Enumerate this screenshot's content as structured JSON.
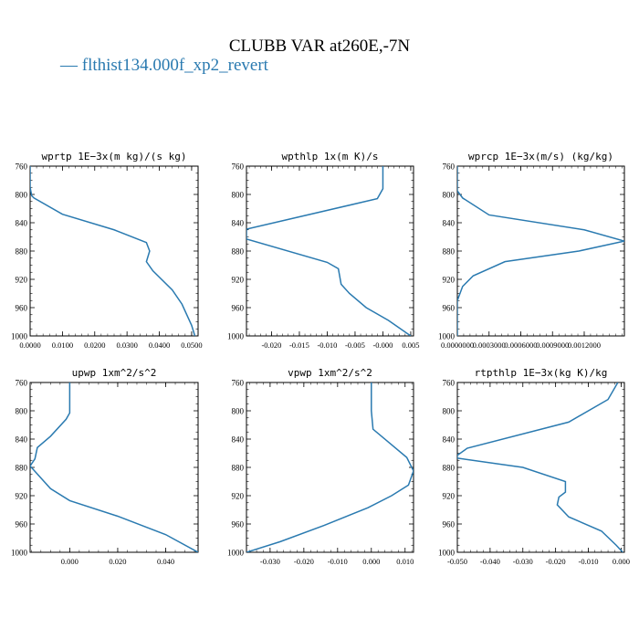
{
  "title": "CLUBB VAR at260E,-7N",
  "legend": {
    "label": "— flthist134.000f_xp2_revert",
    "color": "#2a7ab0"
  },
  "line_color": "#2a7ab0",
  "chart_data": [
    {
      "type": "line",
      "title": "wprtp   1E−3x(m kg)/(s kg)",
      "xlim": [
        0.0,
        0.052
      ],
      "ylim": [
        760,
        1000
      ],
      "y_inverted": true,
      "xticks": [
        0.0,
        0.01,
        0.02,
        0.03,
        0.04,
        0.05
      ],
      "xtick_labels": [
        "0.0000",
        "0.0100",
        "0.0200",
        "0.0300",
        "0.0400",
        "0.0500"
      ],
      "yticks": [
        760,
        800,
        840,
        880,
        920,
        960,
        1000
      ],
      "series": [
        {
          "x": [
            0.0,
            0.0,
            0.0005,
            0.0012,
            0.01,
            0.026,
            0.036,
            0.037,
            0.036,
            0.038,
            0.044,
            0.047,
            0.05,
            0.051
          ],
          "y": [
            760,
            790,
            802,
            805,
            828,
            850,
            868,
            880,
            895,
            908,
            935,
            955,
            985,
            1000
          ]
        }
      ]
    },
    {
      "type": "line",
      "title": "wpthlp   1x(m K)/s",
      "xlim": [
        -0.0245,
        0.0055
      ],
      "ylim": [
        760,
        1000
      ],
      "y_inverted": true,
      "xticks": [
        -0.02,
        -0.015,
        -0.01,
        -0.005,
        0.0,
        0.005
      ],
      "xtick_labels": [
        "-0.020",
        "-0.015",
        "-0.010",
        "-0.005",
        "-0.000",
        "0.005"
      ],
      "yticks": [
        760,
        800,
        840,
        880,
        920,
        960,
        1000
      ],
      "series": [
        {
          "x": [
            0.0,
            0.0,
            -0.001,
            -0.0245,
            -0.0245,
            -0.01,
            -0.008,
            -0.0075,
            -0.006,
            -0.003,
            0.001,
            0.005
          ],
          "y": [
            760,
            792,
            806,
            849,
            863,
            896,
            905,
            927,
            940,
            960,
            978,
            1000
          ]
        }
      ]
    },
    {
      "type": "line",
      "title": "wprcp   1E−3x(m/s) (kg/kg)",
      "xlim": [
        0.0,
        0.00158
      ],
      "ylim": [
        760,
        1000
      ],
      "y_inverted": true,
      "xticks": [
        0.0,
        0.0003,
        0.0006,
        0.0009,
        0.0012
      ],
      "xtick_labels": [
        "0.0000000",
        "0.0003000",
        "0.0006000",
        "0.0009000",
        "0.0012000"
      ],
      "yticks": [
        760,
        800,
        840,
        880,
        920,
        960,
        1000
      ],
      "series": [
        {
          "x": [
            0.0,
            0.0,
            5e-05,
            0.0003,
            0.0012,
            0.00158,
            0.00115,
            0.00045,
            0.00015,
            5e-05,
            0.0,
            0.0
          ],
          "y": [
            760,
            795,
            805,
            829,
            850,
            866,
            880,
            895,
            915,
            930,
            950,
            1000
          ]
        }
      ]
    },
    {
      "type": "line",
      "title": "upwp   1xm^2/s^2",
      "xlim": [
        -0.0165,
        0.0535
      ],
      "ylim": [
        760,
        1000
      ],
      "y_inverted": true,
      "xticks": [
        0.0,
        0.02,
        0.04
      ],
      "xtick_labels": [
        "0.000",
        "0.020",
        "0.040"
      ],
      "yticks": [
        760,
        800,
        840,
        880,
        920,
        960,
        1000
      ],
      "series": [
        {
          "x": [
            0.0,
            0.0,
            -0.0015,
            -0.008,
            -0.0135,
            -0.0145,
            -0.0165,
            -0.012,
            -0.008,
            0.0,
            0.02,
            0.04,
            0.0535
          ],
          "y": [
            760,
            803,
            812,
            836,
            852,
            868,
            878,
            895,
            910,
            927,
            949,
            975,
            1000
          ]
        }
      ]
    },
    {
      "type": "line",
      "title": "vpwp   1xm^2/s^2",
      "xlim": [
        -0.037,
        0.0125
      ],
      "ylim": [
        760,
        1000
      ],
      "y_inverted": true,
      "xticks": [
        -0.03,
        -0.02,
        -0.01,
        0.0,
        0.01
      ],
      "xtick_labels": [
        "-0.030",
        "-0.020",
        "-0.010",
        "0.000",
        "0.010"
      ],
      "yticks": [
        760,
        800,
        840,
        880,
        920,
        960,
        1000
      ],
      "series": [
        {
          "x": [
            0.0,
            0.0,
            0.0005,
            0.006,
            0.0105,
            0.0125,
            0.011,
            0.006,
            -0.001,
            -0.014,
            -0.027,
            -0.037
          ],
          "y": [
            760,
            800,
            826,
            848,
            866,
            885,
            905,
            920,
            937,
            962,
            985,
            1000
          ]
        }
      ]
    },
    {
      "type": "line",
      "title": "rtpthlp   1E−3x(kg K)/kg",
      "xlim": [
        -0.05,
        0.001
      ],
      "ylim": [
        760,
        1000
      ],
      "y_inverted": true,
      "xticks": [
        -0.05,
        -0.04,
        -0.03,
        -0.02,
        -0.01,
        0.0
      ],
      "xtick_labels": [
        "-0.050",
        "-0.040",
        "-0.030",
        "-0.020",
        "-0.010",
        "0.000"
      ],
      "yticks": [
        760,
        800,
        840,
        880,
        920,
        960,
        1000
      ],
      "series": [
        {
          "x": [
            -0.001,
            -0.004,
            -0.016,
            -0.047,
            -0.05,
            -0.05,
            -0.03,
            -0.017,
            -0.017,
            -0.019,
            -0.0195,
            -0.016,
            -0.006,
            -0.0015,
            0.0005
          ],
          "y": [
            760,
            784,
            816,
            853,
            863,
            867,
            880,
            900,
            915,
            922,
            933,
            950,
            970,
            990,
            1000
          ]
        }
      ]
    }
  ]
}
